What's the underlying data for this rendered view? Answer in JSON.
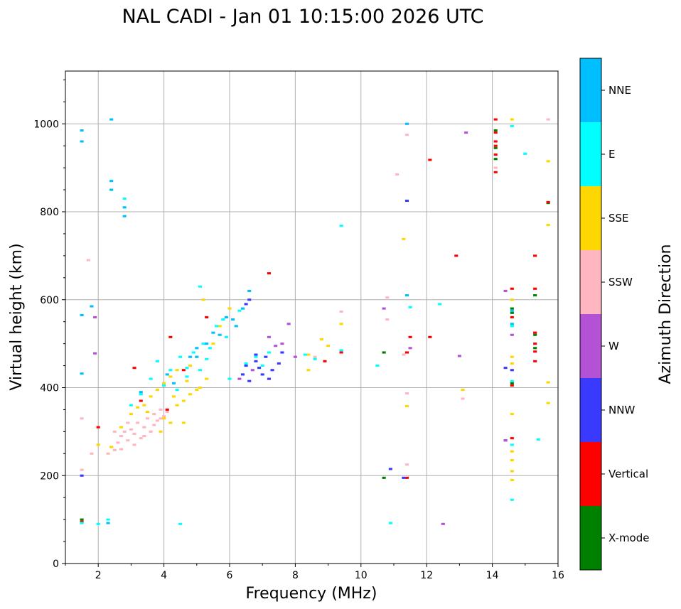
{
  "chart_data": {
    "type": "scatter",
    "title": "NAL CADI - Jan 01 10:15:00 2026 UTC",
    "xlabel": "Frequency (MHz)",
    "ylabel": "Virtual height (km)",
    "xlim": [
      1,
      16
    ],
    "ylim": [
      0,
      1120
    ],
    "x_ticks": [
      2,
      4,
      6,
      8,
      10,
      12,
      14,
      16
    ],
    "y_ticks": [
      0,
      200,
      400,
      600,
      800,
      1000
    ],
    "grid": true,
    "colorbar": {
      "label": "Azimuth Direction",
      "categories": [
        {
          "name": "X-mode",
          "color": "#008000"
        },
        {
          "name": "Vertical",
          "color": "#ff0000"
        },
        {
          "name": "NNW",
          "color": "#3a3aff"
        },
        {
          "name": "W",
          "color": "#b452d6"
        },
        {
          "name": "SSW",
          "color": "#ffb6c1"
        },
        {
          "name": "SSE",
          "color": "#ffd700"
        },
        {
          "name": "E",
          "color": "#00ffff"
        },
        {
          "name": "NNE",
          "color": "#00bfff"
        }
      ]
    },
    "series": [
      {
        "name": "X-mode",
        "points": [
          [
            1.5,
            100
          ],
          [
            10.7,
            195
          ],
          [
            10.7,
            480
          ],
          [
            14.1,
            985
          ],
          [
            14.1,
            945
          ],
          [
            14.6,
            580
          ],
          [
            14.6,
            410
          ],
          [
            15.3,
            610
          ],
          [
            15.3,
            520
          ],
          [
            15.3,
            490
          ],
          [
            15.7,
            820
          ],
          [
            14.6,
            570
          ],
          [
            14.1,
            920
          ]
        ]
      },
      {
        "name": "Vertical",
        "points": [
          [
            1.5,
            95
          ],
          [
            2.0,
            310
          ],
          [
            3.1,
            445
          ],
          [
            3.3,
            370
          ],
          [
            4.2,
            515
          ],
          [
            4.1,
            350
          ],
          [
            4.6,
            440
          ],
          [
            5.3,
            560
          ],
          [
            7.2,
            660
          ],
          [
            8.9,
            460
          ],
          [
            9.4,
            480
          ],
          [
            11.4,
            195
          ],
          [
            11.4,
            480
          ],
          [
            11.5,
            515
          ],
          [
            12.1,
            918
          ],
          [
            12.1,
            515
          ],
          [
            12.9,
            700
          ],
          [
            14.1,
            1010
          ],
          [
            14.1,
            980
          ],
          [
            14.1,
            950
          ],
          [
            14.1,
            930
          ],
          [
            14.1,
            890
          ],
          [
            14.6,
            625
          ],
          [
            14.6,
            560
          ],
          [
            14.6,
            405
          ],
          [
            14.6,
            285
          ],
          [
            15.3,
            700
          ],
          [
            15.3,
            625
          ],
          [
            15.3,
            525
          ],
          [
            15.3,
            500
          ],
          [
            15.3,
            482
          ],
          [
            15.3,
            460
          ],
          [
            15.7,
            822
          ],
          [
            14.1,
            960
          ]
        ]
      },
      {
        "name": "NNW",
        "points": [
          [
            1.5,
            200
          ],
          [
            6.4,
            430
          ],
          [
            6.5,
            450
          ],
          [
            6.6,
            415
          ],
          [
            6.8,
            460
          ],
          [
            6.9,
            445
          ],
          [
            7.0,
            430
          ],
          [
            7.1,
            470
          ],
          [
            7.3,
            440
          ],
          [
            7.5,
            455
          ],
          [
            7.6,
            480
          ],
          [
            6.5,
            590
          ],
          [
            6.6,
            600
          ],
          [
            10.9,
            215
          ],
          [
            11.4,
            825
          ],
          [
            14.4,
            445
          ],
          [
            14.6,
            440
          ],
          [
            14.4,
            280
          ],
          [
            11.3,
            195
          ],
          [
            7.2,
            420
          ],
          [
            6.8,
            475
          ]
        ]
      },
      {
        "name": "W",
        "points": [
          [
            1.9,
            560
          ],
          [
            1.9,
            478
          ],
          [
            6.3,
            420
          ],
          [
            7.2,
            515
          ],
          [
            7.8,
            545
          ],
          [
            8.0,
            470
          ],
          [
            7.6,
            500
          ],
          [
            10.7,
            580
          ],
          [
            11.5,
            490
          ],
          [
            12.5,
            90
          ],
          [
            13.0,
            472
          ],
          [
            13.2,
            980
          ],
          [
            14.4,
            620
          ],
          [
            14.6,
            520
          ],
          [
            14.4,
            280
          ],
          [
            6.7,
            440
          ],
          [
            7.4,
            495
          ]
        ]
      },
      {
        "name": "SSW",
        "points": [
          [
            1.5,
            330
          ],
          [
            1.5,
            213
          ],
          [
            1.7,
            690
          ],
          [
            1.8,
            250
          ],
          [
            2.4,
            265
          ],
          [
            2.5,
            258
          ],
          [
            2.6,
            275
          ],
          [
            2.7,
            290
          ],
          [
            2.8,
            300
          ],
          [
            2.9,
            280
          ],
          [
            3.0,
            305
          ],
          [
            3.1,
            295
          ],
          [
            3.2,
            320
          ],
          [
            3.3,
            285
          ],
          [
            3.4,
            310
          ],
          [
            3.5,
            330
          ],
          [
            3.6,
            300
          ],
          [
            3.7,
            340
          ],
          [
            3.8,
            325
          ],
          [
            3.9,
            350
          ],
          [
            4.0,
            335
          ],
          [
            4.1,
            345
          ],
          [
            2.3,
            250
          ],
          [
            2.5,
            300
          ],
          [
            2.7,
            260
          ],
          [
            2.9,
            320
          ],
          [
            3.1,
            270
          ],
          [
            3.4,
            290
          ],
          [
            3.7,
            315
          ],
          [
            3.9,
            330
          ],
          [
            8.6,
            470
          ],
          [
            9.4,
            573
          ],
          [
            10.8,
            605
          ],
          [
            10.8,
            555
          ],
          [
            11.1,
            885
          ],
          [
            11.3,
            475
          ],
          [
            11.4,
            975
          ],
          [
            11.4,
            387
          ],
          [
            11.4,
            225
          ],
          [
            13.1,
            375
          ],
          [
            14.1,
            900
          ],
          [
            15.7,
            1010
          ]
        ]
      },
      {
        "name": "SSE",
        "points": [
          [
            2.0,
            270
          ],
          [
            2.4,
            265
          ],
          [
            2.7,
            310
          ],
          [
            3.0,
            340
          ],
          [
            3.2,
            355
          ],
          [
            3.4,
            360
          ],
          [
            3.6,
            380
          ],
          [
            3.8,
            395
          ],
          [
            4.0,
            330
          ],
          [
            4.0,
            410
          ],
          [
            4.2,
            320
          ],
          [
            4.2,
            425
          ],
          [
            4.4,
            360
          ],
          [
            4.4,
            440
          ],
          [
            4.6,
            370
          ],
          [
            4.6,
            320
          ],
          [
            4.8,
            385
          ],
          [
            4.8,
            450
          ],
          [
            5.0,
            470
          ],
          [
            5.1,
            400
          ],
          [
            5.2,
            600
          ],
          [
            5.3,
            420
          ],
          [
            5.5,
            500
          ],
          [
            5.7,
            540
          ],
          [
            6.0,
            580
          ],
          [
            8.4,
            440
          ],
          [
            8.4,
            475
          ],
          [
            8.8,
            510
          ],
          [
            9.0,
            495
          ],
          [
            9.4,
            545
          ],
          [
            11.3,
            738
          ],
          [
            11.4,
            358
          ],
          [
            13.1,
            395
          ],
          [
            14.6,
            1010
          ],
          [
            14.6,
            470
          ],
          [
            14.6,
            455
          ],
          [
            14.6,
            600
          ],
          [
            14.6,
            340
          ],
          [
            14.6,
            255
          ],
          [
            14.6,
            235
          ],
          [
            14.6,
            210
          ],
          [
            14.6,
            190
          ],
          [
            15.7,
            915
          ],
          [
            15.7,
            770
          ],
          [
            15.7,
            412
          ],
          [
            15.7,
            365
          ],
          [
            3.5,
            345
          ],
          [
            3.9,
            300
          ],
          [
            4.3,
            380
          ],
          [
            4.7,
            415
          ],
          [
            5.0,
            395
          ]
        ]
      },
      {
        "name": "E",
        "points": [
          [
            1.5,
            92
          ],
          [
            2.0,
            90
          ],
          [
            2.3,
            100
          ],
          [
            2.8,
            830
          ],
          [
            3.0,
            360
          ],
          [
            3.3,
            385
          ],
          [
            3.6,
            420
          ],
          [
            3.8,
            460
          ],
          [
            4.0,
            405
          ],
          [
            4.2,
            440
          ],
          [
            4.4,
            395
          ],
          [
            4.5,
            470
          ],
          [
            4.7,
            425
          ],
          [
            4.9,
            480
          ],
          [
            5.1,
            440
          ],
          [
            5.1,
            630
          ],
          [
            5.2,
            500
          ],
          [
            5.4,
            490
          ],
          [
            5.6,
            540
          ],
          [
            5.8,
            555
          ],
          [
            5.9,
            515
          ],
          [
            6.0,
            420
          ],
          [
            6.3,
            575
          ],
          [
            6.8,
            470
          ],
          [
            7.0,
            450
          ],
          [
            7.2,
            480
          ],
          [
            4.5,
            90
          ],
          [
            8.3,
            475
          ],
          [
            8.6,
            465
          ],
          [
            9.4,
            485
          ],
          [
            9.4,
            768
          ],
          [
            10.5,
            450
          ],
          [
            10.9,
            92
          ],
          [
            11.5,
            583
          ],
          [
            12.4,
            590
          ],
          [
            14.6,
            995
          ],
          [
            14.6,
            540
          ],
          [
            14.6,
            415
          ],
          [
            14.6,
            270
          ],
          [
            14.6,
            145
          ],
          [
            15.0,
            932
          ],
          [
            15.4,
            282
          ],
          [
            4.7,
            445
          ],
          [
            5.3,
            465
          ],
          [
            6.5,
            455
          ]
        ]
      },
      {
        "name": "NNE",
        "points": [
          [
            1.5,
            985
          ],
          [
            1.5,
            960
          ],
          [
            1.5,
            432
          ],
          [
            1.5,
            565
          ],
          [
            1.8,
            585
          ],
          [
            2.3,
            92
          ],
          [
            2.4,
            1010
          ],
          [
            2.4,
            870
          ],
          [
            2.4,
            850
          ],
          [
            2.8,
            810
          ],
          [
            2.8,
            790
          ],
          [
            4.3,
            410
          ],
          [
            4.8,
            470
          ],
          [
            5.0,
            470
          ],
          [
            5.3,
            500
          ],
          [
            5.5,
            525
          ],
          [
            5.7,
            520
          ],
          [
            6.1,
            555
          ],
          [
            6.2,
            540
          ],
          [
            6.4,
            580
          ],
          [
            6.6,
            620
          ],
          [
            11.4,
            1000
          ],
          [
            11.4,
            610
          ],
          [
            14.6,
            575
          ],
          [
            14.6,
            545
          ],
          [
            3.3,
            390
          ],
          [
            4.1,
            430
          ],
          [
            5.0,
            490
          ],
          [
            5.9,
            560
          ]
        ]
      }
    ]
  }
}
